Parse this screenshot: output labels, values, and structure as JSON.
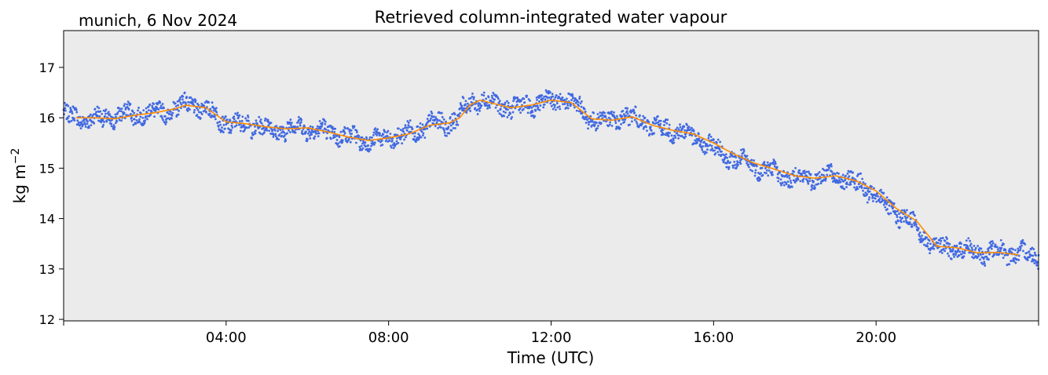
{
  "location_label": "munich, 6 Nov 2024",
  "chart_data": {
    "type": "scatter",
    "title": "Retrieved column-integrated water vapour",
    "xlabel": "Time (UTC)",
    "ylabel_main": "kg m",
    "ylabel_sup": "−2",
    "xlim_hours": [
      0,
      24
    ],
    "ylim": [
      11.97,
      17.73
    ],
    "x_ticks": [
      {
        "hour": 4,
        "label": "04:00"
      },
      {
        "hour": 8,
        "label": "08:00"
      },
      {
        "hour": 12,
        "label": "12:00"
      },
      {
        "hour": 16,
        "label": "16:00"
      },
      {
        "hour": 20,
        "label": "20:00"
      }
    ],
    "y_ticks": [
      12,
      13,
      14,
      15,
      16,
      17
    ],
    "grid": false,
    "colors": {
      "background": "#ebebeb",
      "scatter": "#4169e1",
      "smoothed_line": "#ff8c00"
    },
    "series": [
      {
        "style": "scatter",
        "x_hours": [
          0,
          0.25,
          0.5,
          0.75,
          1,
          1.25,
          1.5,
          1.75,
          2,
          2.25,
          2.5,
          2.75,
          3,
          3.25,
          3.5,
          3.75,
          4,
          4.25,
          4.5,
          4.75,
          5,
          5.25,
          5.5,
          5.75,
          6,
          6.25,
          6.5,
          6.75,
          7,
          7.25,
          7.5,
          7.75,
          8,
          8.25,
          8.5,
          8.75,
          9,
          9.25,
          9.5,
          9.75,
          10,
          10.25,
          10.5,
          10.75,
          11,
          11.25,
          11.5,
          11.75,
          12,
          12.25,
          12.5,
          12.75,
          13,
          13.25,
          13.5,
          13.75,
          14,
          14.25,
          14.5,
          14.75,
          15,
          15.25,
          15.5,
          15.75,
          16,
          16.25,
          16.5,
          16.75,
          17,
          17.25,
          17.5,
          17.75,
          18,
          18.25,
          18.5,
          18.75,
          19,
          19.25,
          19.5,
          19.75,
          20,
          20.25,
          20.5,
          20.75,
          21,
          21.25,
          21.5,
          21.75,
          22,
          22.25,
          22.5,
          22.75,
          23,
          23.25,
          23.5,
          23.75,
          24
        ],
        "y": [
          16.08,
          16.0,
          15.98,
          16.0,
          15.97,
          16.02,
          16.08,
          16.05,
          16.1,
          16.1,
          16.12,
          16.18,
          16.28,
          16.25,
          16.18,
          16.02,
          15.9,
          15.85,
          15.88,
          15.85,
          15.78,
          15.75,
          15.78,
          15.8,
          15.8,
          15.75,
          15.72,
          15.68,
          15.62,
          15.58,
          15.55,
          15.55,
          15.6,
          15.62,
          15.7,
          15.75,
          15.88,
          15.88,
          15.9,
          16.05,
          16.3,
          16.35,
          16.3,
          16.25,
          16.2,
          16.22,
          16.25,
          16.3,
          16.35,
          16.35,
          16.3,
          16.15,
          15.98,
          15.92,
          15.98,
          16.02,
          15.98,
          15.95,
          15.82,
          15.78,
          15.75,
          15.72,
          15.62,
          15.52,
          15.4,
          15.28,
          15.18,
          15.1,
          15.05,
          14.98,
          14.92,
          14.85,
          14.8,
          14.8,
          14.82,
          14.85,
          14.85,
          14.8,
          14.7,
          14.6,
          14.45,
          14.25,
          14.12,
          14.0,
          13.85,
          13.55,
          13.45,
          13.42,
          13.4,
          13.35,
          13.32,
          13.32,
          13.35,
          13.33,
          13.3,
          13.28,
          13.28
        ]
      },
      {
        "style": "line",
        "x_hours": [
          0.3,
          0.75,
          1.25,
          1.75,
          2.25,
          2.75,
          3.0,
          3.5,
          4.0,
          4.5,
          5.0,
          5.5,
          6.0,
          6.5,
          7.0,
          7.5,
          8.0,
          8.5,
          9.0,
          9.5,
          9.75,
          10.0,
          10.25,
          10.5,
          10.75,
          11.0,
          11.5,
          12.0,
          12.5,
          13.0,
          13.5,
          14.0,
          14.5,
          15.0,
          15.5,
          16.0,
          16.5,
          17.0,
          17.5,
          18.0,
          18.5,
          19.0,
          19.5,
          20.0,
          20.5,
          21.0,
          21.5,
          22.0,
          22.5,
          23.0,
          23.5
        ],
        "y": [
          16.0,
          16.0,
          15.98,
          16.05,
          16.1,
          16.18,
          16.25,
          16.2,
          15.92,
          15.88,
          15.82,
          15.78,
          15.8,
          15.72,
          15.62,
          15.55,
          15.6,
          15.68,
          15.85,
          15.9,
          16.0,
          16.25,
          16.35,
          16.3,
          16.25,
          16.2,
          16.25,
          16.35,
          16.3,
          15.98,
          15.95,
          16.02,
          15.85,
          15.75,
          15.68,
          15.5,
          15.28,
          15.1,
          14.98,
          14.85,
          14.8,
          14.85,
          14.75,
          14.55,
          14.2,
          13.95,
          13.45,
          13.42,
          13.32,
          13.33,
          13.28
        ]
      }
    ]
  }
}
